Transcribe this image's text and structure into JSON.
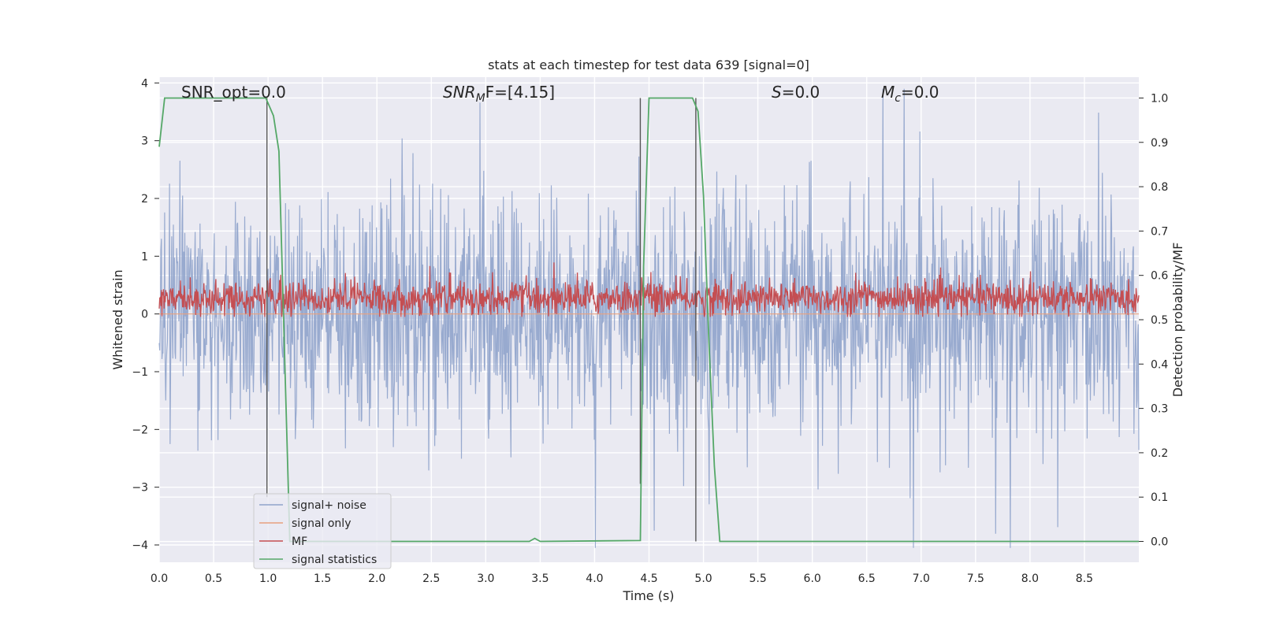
{
  "chart_data": {
    "type": "line",
    "title": "stats at each timestep for test data 639 [signal=0]",
    "xlabel": "Time (s)",
    "ylabel_left": "Whitened strain",
    "ylabel_right": "Detection probability/MF",
    "xlim": [
      0.0,
      9.0
    ],
    "ylim_left": [
      -4.3,
      4.1
    ],
    "ylim_right": [
      -0.047,
      1.047
    ],
    "x_ticks": [
      "0.0",
      "0.5",
      "1.0",
      "1.5",
      "2.0",
      "2.5",
      "3.0",
      "3.5",
      "4.0",
      "4.5",
      "5.0",
      "5.5",
      "6.0",
      "6.5",
      "7.0",
      "7.5",
      "8.0",
      "8.5"
    ],
    "y_left_ticks": [
      "4",
      "3",
      "2",
      "1",
      "0",
      "−1",
      "−2",
      "−3",
      "−4"
    ],
    "y_right_ticks": [
      "1.0",
      "0.9",
      "0.8",
      "0.7",
      "0.6",
      "0.5",
      "0.4",
      "0.3",
      "0.2",
      "0.1",
      "0.0"
    ],
    "grid": true,
    "legend_position": "lower-left",
    "annotations": [
      {
        "prefix": "SNR_opt=0.0",
        "italic": "",
        "sub": "",
        "suffix": ""
      },
      {
        "prefix": "",
        "italic": "SNR",
        "sub": "M",
        "suffix": "F=[4.15]"
      },
      {
        "prefix": "",
        "italic": "S",
        "sub": "",
        "suffix": "=0.0"
      },
      {
        "prefix": "",
        "italic": "M",
        "sub": "c",
        "suffix": "=0.0"
      }
    ],
    "series": [
      {
        "name": "signal+ noise",
        "axis": "left",
        "color": "#8fa3cb",
        "description": "whitened strain noise, amplitude about ±1 with peaks to ±3",
        "sample_count": 1800
      },
      {
        "name": "signal only",
        "axis": "left",
        "color": "#e8a07e",
        "x": [
          0.0,
          9.0
        ],
        "y": [
          0.0,
          0.0
        ]
      },
      {
        "name": "MF",
        "axis": "left",
        "color": "#c44e52",
        "description": "matched filter output oscillating between about 0.0 and 0.6",
        "sample_count": 1800
      },
      {
        "name": "signal statistics",
        "axis": "right",
        "color": "#55a868",
        "x": [
          0.0,
          0.05,
          0.5,
          0.98,
          1.05,
          1.1,
          1.2,
          3.4,
          3.45,
          3.5,
          4.42,
          4.45,
          4.5,
          4.9,
          4.95,
          5.0,
          5.05,
          5.1,
          5.15,
          9.0
        ],
        "y": [
          0.89,
          1.0,
          1.0,
          1.0,
          0.96,
          0.88,
          0.0,
          0.0,
          0.007,
          0.0,
          0.002,
          0.62,
          1.0,
          1.0,
          0.97,
          0.78,
          0.45,
          0.17,
          0.0,
          0.0
        ]
      }
    ],
    "vertical_markers": [
      {
        "x": 0.99,
        "top": 1.0,
        "bottom": 0.1
      },
      {
        "x": 4.42,
        "top": 1.0,
        "bottom": 0.13
      },
      {
        "x": 4.93,
        "top": 1.0,
        "bottom": 0.0
      }
    ]
  }
}
